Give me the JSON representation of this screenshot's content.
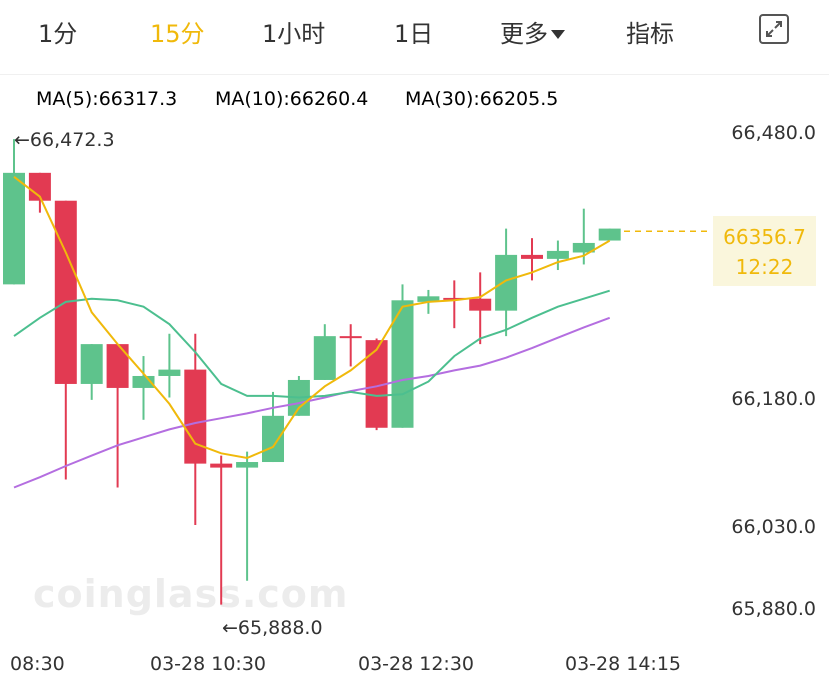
{
  "tabs": [
    {
      "label": "1分",
      "active": false
    },
    {
      "label": "15分",
      "active": true
    },
    {
      "label": "1小时",
      "active": false
    },
    {
      "label": "1日",
      "active": false
    },
    {
      "label": "更多",
      "active": false
    },
    {
      "label": "指标",
      "active": false
    }
  ],
  "ma_legend": [
    {
      "label": "MA(5):66317.3",
      "color": "#f0b90b"
    },
    {
      "label": "MA(10):66260.4",
      "color": "#4cbf8f"
    },
    {
      "label": "MA(30):66205.5",
      "color": "#b46ee0"
    }
  ],
  "current_price": {
    "price": "66356.7",
    "countdown": "12:22",
    "value": 66356.7
  },
  "annotations": {
    "high_label": "←66,472.3",
    "low_label": "←65,888.0"
  },
  "watermark": "coinglass.com",
  "colors": {
    "up": "#5ec38c",
    "down": "#e23a52",
    "ma5": "#f0b90b",
    "ma10": "#4cbf8f",
    "ma30": "#b46ee0"
  },
  "chart_data": {
    "type": "candlestick",
    "interval": "15分",
    "y_ticks": [
      "66,480.0",
      "66,180.0",
      "66,030.0",
      "65,880.0"
    ],
    "x_ticks": [
      "08:30",
      "03-28 10:30",
      "03-28 12:30",
      "03-28 14:15"
    ],
    "ylim": [
      65880,
      66480
    ],
    "candles": [
      {
        "o": 66290,
        "h": 66472.3,
        "l": 66290,
        "c": 66430
      },
      {
        "o": 66430,
        "h": 66430,
        "l": 66380,
        "c": 66395
      },
      {
        "o": 66395,
        "h": 66395,
        "l": 66045,
        "c": 66165
      },
      {
        "o": 66165,
        "h": 66215,
        "l": 66145,
        "c": 66215
      },
      {
        "o": 66215,
        "h": 66215,
        "l": 66035,
        "c": 66160
      },
      {
        "o": 66160,
        "h": 66200,
        "l": 66120,
        "c": 66175
      },
      {
        "o": 66175,
        "h": 66228,
        "l": 66148,
        "c": 66183
      },
      {
        "o": 66183,
        "h": 66228,
        "l": 65988,
        "c": 66065
      },
      {
        "o": 66065,
        "h": 66075,
        "l": 65888,
        "c": 66060
      },
      {
        "o": 66060,
        "h": 66080,
        "l": 65918,
        "c": 66067
      },
      {
        "o": 66067,
        "h": 66155,
        "l": 66067,
        "c": 66125
      },
      {
        "o": 66125,
        "h": 66175,
        "l": 66125,
        "c": 66170
      },
      {
        "o": 66170,
        "h": 66240,
        "l": 66170,
        "c": 66225
      },
      {
        "o": 66225,
        "h": 66240,
        "l": 66187,
        "c": 66223
      },
      {
        "o": 66220,
        "h": 66222,
        "l": 66107,
        "c": 66110
      },
      {
        "o": 66110,
        "h": 66290,
        "l": 66110,
        "c": 66270
      },
      {
        "o": 66268,
        "h": 66283,
        "l": 66253,
        "c": 66275
      },
      {
        "o": 66273,
        "h": 66295,
        "l": 66235,
        "c": 66272
      },
      {
        "o": 66272,
        "h": 66305,
        "l": 66215,
        "c": 66257
      },
      {
        "o": 66257,
        "h": 66360,
        "l": 66225,
        "c": 66327
      },
      {
        "o": 66327,
        "h": 66348,
        "l": 66295,
        "c": 66322
      },
      {
        "o": 66322,
        "h": 66345,
        "l": 66308,
        "c": 66332
      },
      {
        "o": 66330,
        "h": 66385,
        "l": 66315,
        "c": 66342
      },
      {
        "o": 66345,
        "h": 66360,
        "l": 66345,
        "c": 66360
      }
    ],
    "ma5": [
      66425,
      66400,
      66330,
      66255,
      66215,
      66178,
      66140,
      66090,
      66078,
      66072,
      66086,
      66135,
      66162,
      66182,
      66208,
      66262,
      66268,
      66270,
      66274,
      66295,
      66305,
      66318,
      66326,
      66345
    ],
    "ma10": [
      66225,
      66248,
      66268,
      66272,
      66270,
      66262,
      66240,
      66205,
      66165,
      66150,
      66150,
      66148,
      66150,
      66155,
      66150,
      66152,
      66168,
      66200,
      66222,
      66233,
      66248,
      66262,
      66272,
      66282
    ],
    "ma30": [
      66035,
      66048,
      66062,
      66075,
      66088,
      66098,
      66108,
      66116,
      66122,
      66128,
      66135,
      66141,
      66148,
      66156,
      66162,
      66170,
      66175,
      66182,
      66188,
      66198,
      66210,
      66223,
      66236,
      66248
    ]
  }
}
